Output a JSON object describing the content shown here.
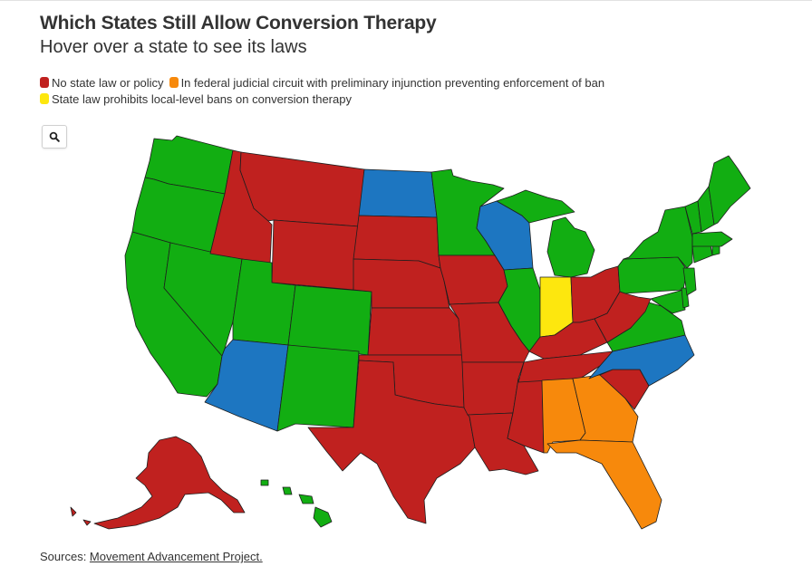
{
  "header": {
    "title": "Which States Still Allow Conversion Therapy",
    "subtitle": "Hover over a state to see its laws"
  },
  "legend": {
    "items": [
      {
        "label": "No state law or policy",
        "color": "#c0211f"
      },
      {
        "label": "In federal judicial circuit with preliminary injunction preventing enforcement of ban",
        "color": "#f7890c"
      },
      {
        "label": "State law prohibits local-level bans on conversion therapy",
        "color": "#fde70e"
      }
    ]
  },
  "map": {
    "colors": {
      "red": "#c0211f",
      "orange": "#f7890c",
      "yellow": "#fde70e",
      "green": "#12ae12",
      "blue": "#1d76c1"
    },
    "zoom_icon": "magnifier-icon"
  },
  "footer": {
    "source_prefix": "Sources: ",
    "source_link": "Movement Advancement Project."
  }
}
